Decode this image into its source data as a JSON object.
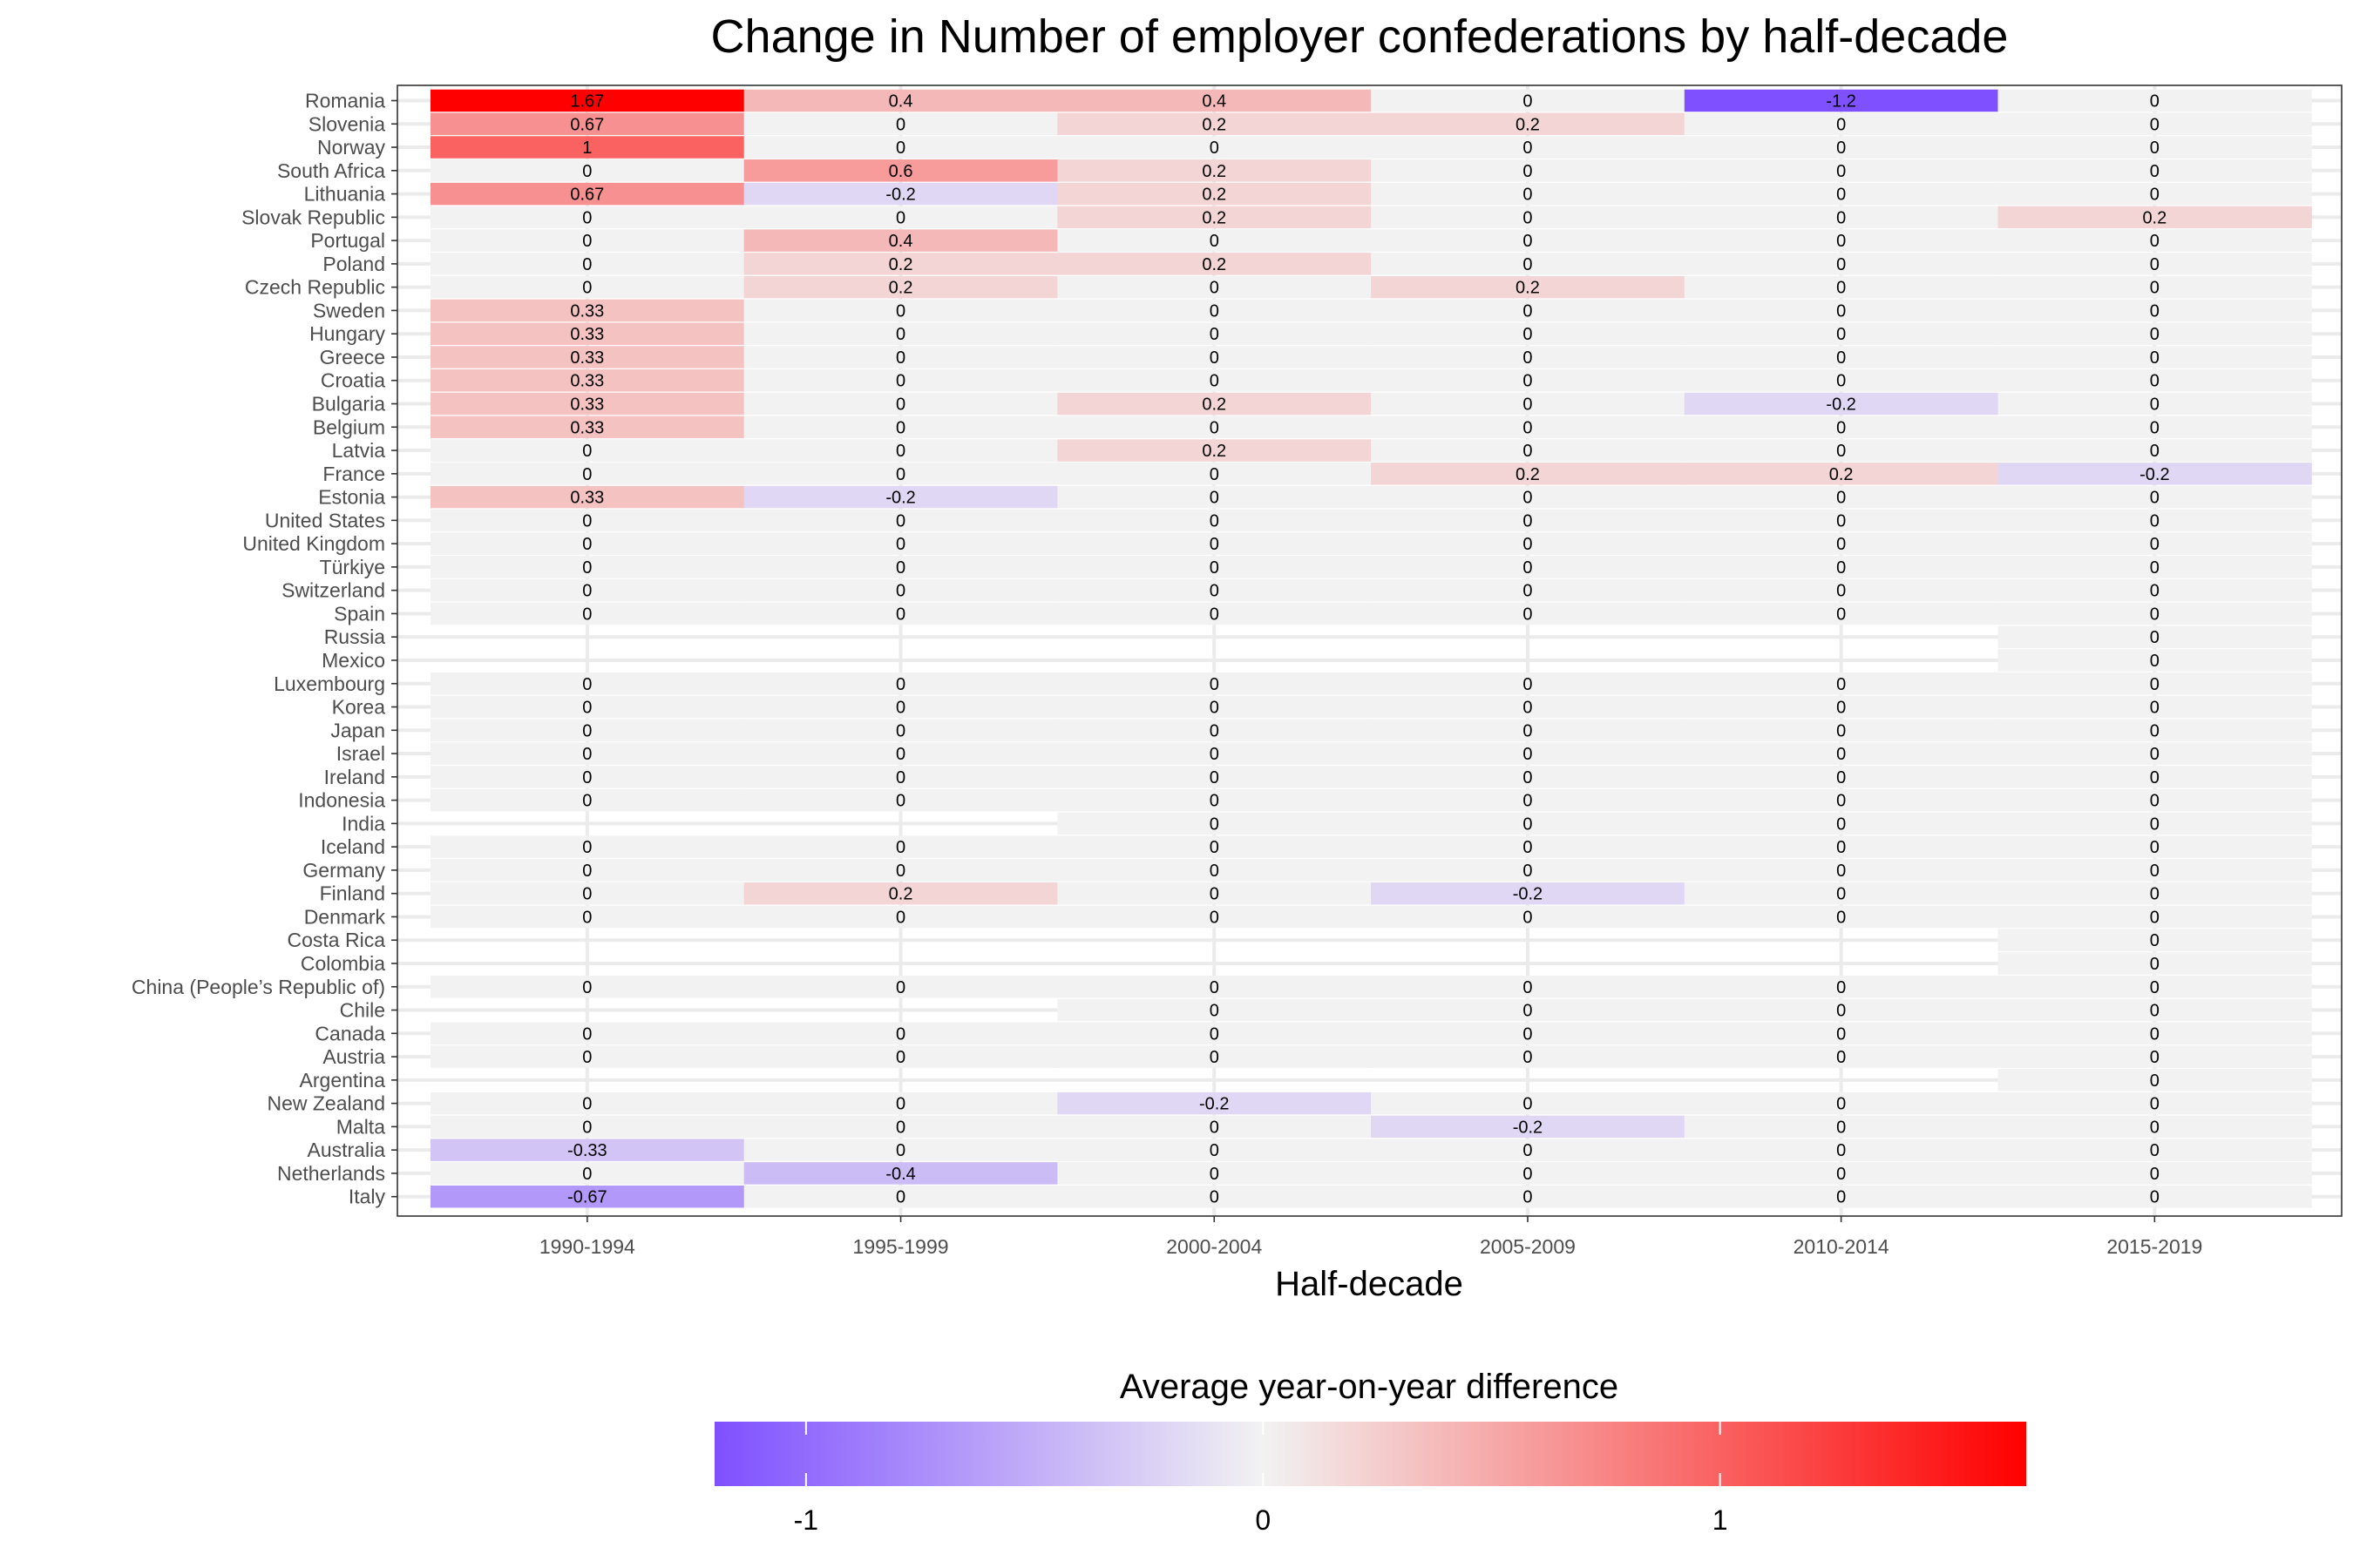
{
  "chart_data": {
    "type": "heatmap",
    "title": "Change in Number of employer confederations by half-decade",
    "xlabel": "Half-decade",
    "ylabel": "",
    "legend": {
      "title": "Average year-on-year difference",
      "placement": "bottom",
      "ticks": [
        "-1",
        "0",
        "1"
      ],
      "range": [
        -1.2,
        1.67
      ],
      "colors": {
        "low": "#7f50ff",
        "mid": "#f2f2f2",
        "high": "#ff0000"
      }
    },
    "na_color": "#f2f2f2",
    "panel_background": "#ffffff",
    "grid": true,
    "columns": [
      "1990-1994",
      "1995-1999",
      "2000-2004",
      "2005-2009",
      "2010-2014",
      "2015-2019"
    ],
    "rows": [
      {
        "country": "Romania",
        "values": [
          1.67,
          0.4,
          0.4,
          0,
          -1.2,
          0
        ]
      },
      {
        "country": "Slovenia",
        "values": [
          0.67,
          0,
          0.2,
          0.2,
          0,
          0
        ]
      },
      {
        "country": "Norway",
        "values": [
          1,
          0,
          0,
          0,
          0,
          0
        ]
      },
      {
        "country": "South Africa",
        "values": [
          0,
          0.6,
          0.2,
          0,
          0,
          0
        ]
      },
      {
        "country": "Lithuania",
        "values": [
          0.67,
          -0.2,
          0.2,
          0,
          0,
          0
        ]
      },
      {
        "country": "Slovak Republic",
        "values": [
          0,
          0,
          0.2,
          0,
          0,
          0.2
        ]
      },
      {
        "country": "Portugal",
        "values": [
          0,
          0.4,
          0,
          0,
          0,
          0
        ]
      },
      {
        "country": "Poland",
        "values": [
          0,
          0.2,
          0.2,
          0,
          0,
          0
        ]
      },
      {
        "country": "Czech Republic",
        "values": [
          0,
          0.2,
          0,
          0.2,
          0,
          0
        ]
      },
      {
        "country": "Sweden",
        "values": [
          0.33,
          0,
          0,
          0,
          0,
          0
        ]
      },
      {
        "country": "Hungary",
        "values": [
          0.33,
          0,
          0,
          0,
          0,
          0
        ]
      },
      {
        "country": "Greece",
        "values": [
          0.33,
          0,
          0,
          0,
          0,
          0
        ]
      },
      {
        "country": "Croatia",
        "values": [
          0.33,
          0,
          0,
          0,
          0,
          0
        ]
      },
      {
        "country": "Bulgaria",
        "values": [
          0.33,
          0,
          0.2,
          0,
          -0.2,
          0
        ]
      },
      {
        "country": "Belgium",
        "values": [
          0.33,
          0,
          0,
          0,
          0,
          0
        ]
      },
      {
        "country": "Latvia",
        "values": [
          0,
          0,
          0.2,
          0,
          0,
          0
        ]
      },
      {
        "country": "France",
        "values": [
          0,
          0,
          0,
          0.2,
          0.2,
          -0.2
        ]
      },
      {
        "country": "Estonia",
        "values": [
          0.33,
          -0.2,
          0,
          0,
          0,
          0
        ]
      },
      {
        "country": "United States",
        "values": [
          0,
          0,
          0,
          0,
          0,
          0
        ]
      },
      {
        "country": "United Kingdom",
        "values": [
          0,
          0,
          0,
          0,
          0,
          0
        ]
      },
      {
        "country": "Türkiye",
        "values": [
          0,
          0,
          0,
          0,
          0,
          0
        ]
      },
      {
        "country": "Switzerland",
        "values": [
          0,
          0,
          0,
          0,
          0,
          0
        ]
      },
      {
        "country": "Spain",
        "values": [
          0,
          0,
          0,
          0,
          0,
          0
        ]
      },
      {
        "country": "Russia",
        "values": [
          null,
          null,
          null,
          null,
          null,
          0
        ]
      },
      {
        "country": "Mexico",
        "values": [
          null,
          null,
          null,
          null,
          null,
          0
        ]
      },
      {
        "country": "Luxembourg",
        "values": [
          0,
          0,
          0,
          0,
          0,
          0
        ]
      },
      {
        "country": "Korea",
        "values": [
          0,
          0,
          0,
          0,
          0,
          0
        ]
      },
      {
        "country": "Japan",
        "values": [
          0,
          0,
          0,
          0,
          0,
          0
        ]
      },
      {
        "country": "Israel",
        "values": [
          0,
          0,
          0,
          0,
          0,
          0
        ]
      },
      {
        "country": "Ireland",
        "values": [
          0,
          0,
          0,
          0,
          0,
          0
        ]
      },
      {
        "country": "Indonesia",
        "values": [
          0,
          0,
          0,
          0,
          0,
          0
        ]
      },
      {
        "country": "India",
        "values": [
          null,
          null,
          0,
          0,
          0,
          0
        ]
      },
      {
        "country": "Iceland",
        "values": [
          0,
          0,
          0,
          0,
          0,
          0
        ]
      },
      {
        "country": "Germany",
        "values": [
          0,
          0,
          0,
          0,
          0,
          0
        ]
      },
      {
        "country": "Finland",
        "values": [
          0,
          0.2,
          0,
          -0.2,
          0,
          0
        ]
      },
      {
        "country": "Denmark",
        "values": [
          0,
          0,
          0,
          0,
          0,
          0
        ]
      },
      {
        "country": "Costa Rica",
        "values": [
          null,
          null,
          null,
          null,
          null,
          0
        ]
      },
      {
        "country": "Colombia",
        "values": [
          null,
          null,
          null,
          null,
          null,
          0
        ]
      },
      {
        "country": "China (People’s Republic of)",
        "values": [
          0,
          0,
          0,
          0,
          0,
          0
        ]
      },
      {
        "country": "Chile",
        "values": [
          null,
          null,
          0,
          0,
          0,
          0
        ]
      },
      {
        "country": "Canada",
        "values": [
          0,
          0,
          0,
          0,
          0,
          0
        ]
      },
      {
        "country": "Austria",
        "values": [
          0,
          0,
          0,
          0,
          0,
          0
        ]
      },
      {
        "country": "Argentina",
        "values": [
          null,
          null,
          null,
          null,
          null,
          0
        ]
      },
      {
        "country": "New Zealand",
        "values": [
          0,
          0,
          -0.2,
          0,
          0,
          0
        ]
      },
      {
        "country": "Malta",
        "values": [
          0,
          0,
          0,
          -0.2,
          0,
          0
        ]
      },
      {
        "country": "Australia",
        "values": [
          -0.33,
          0,
          0,
          0,
          0,
          0
        ]
      },
      {
        "country": "Netherlands",
        "values": [
          0,
          -0.4,
          0,
          0,
          0,
          0
        ]
      },
      {
        "country": "Italy",
        "values": [
          -0.67,
          0,
          0,
          0,
          0,
          0
        ]
      }
    ]
  }
}
